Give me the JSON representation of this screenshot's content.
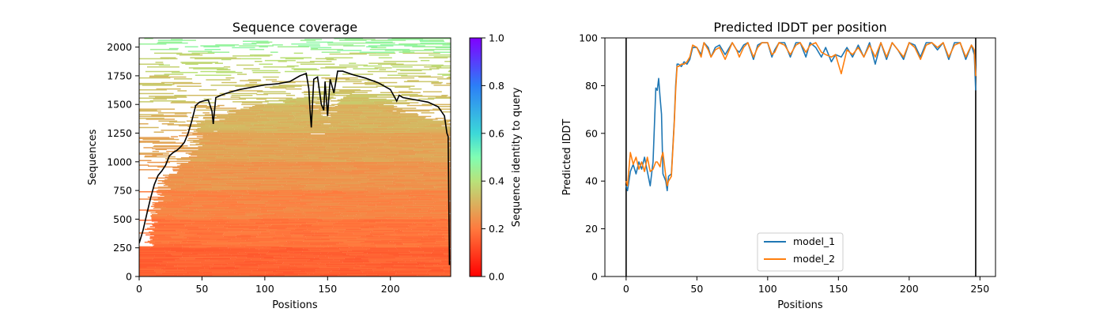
{
  "chart_data": [
    {
      "type": "heatmap",
      "title": "Sequence coverage",
      "xlabel": "Positions",
      "ylabel": "Sequences",
      "xlim": [
        0,
        248
      ],
      "ylim": [
        0,
        2080
      ],
      "xticks": [
        0,
        50,
        100,
        150,
        200
      ],
      "yticks": [
        0,
        250,
        500,
        750,
        1000,
        1250,
        1500,
        1750,
        2000
      ],
      "grid": false,
      "colorbar": {
        "label": "Sequence identity to query",
        "range": [
          0,
          1
        ],
        "ticks": [
          "0.0",
          "0.2",
          "0.4",
          "0.6",
          "0.8",
          "1.0"
        ],
        "colormap": "rainbow_r"
      },
      "identity_bands": [
        {
          "seq_start": 0,
          "seq_end": 250,
          "identity": 0.16
        },
        {
          "seq_start": 250,
          "seq_end": 500,
          "identity": 0.19
        },
        {
          "seq_start": 500,
          "seq_end": 750,
          "identity": 0.22
        },
        {
          "seq_start": 750,
          "seq_end": 1000,
          "identity": 0.25
        },
        {
          "seq_start": 1000,
          "seq_end": 1250,
          "identity": 0.28
        },
        {
          "seq_start": 1250,
          "seq_end": 1500,
          "identity": 0.31
        },
        {
          "seq_start": 1500,
          "seq_end": 1750,
          "identity": 0.34
        },
        {
          "seq_start": 1750,
          "seq_end": 1950,
          "identity": 0.38
        },
        {
          "seq_start": 1950,
          "seq_end": 2080,
          "identity": 0.46
        }
      ],
      "coverage_line": {
        "color": "#000000",
        "x": [
          0,
          3,
          6,
          9,
          12,
          15,
          18,
          21,
          24,
          27,
          30,
          33,
          36,
          39,
          42,
          45,
          48,
          51,
          55,
          58,
          59,
          61,
          65,
          70,
          80,
          90,
          100,
          110,
          120,
          128,
          133,
          135,
          136,
          137,
          139,
          142,
          145,
          147,
          148,
          150,
          152,
          155,
          158,
          162,
          170,
          180,
          190,
          200,
          205,
          207,
          210,
          220,
          230,
          238,
          243,
          245,
          246,
          247
        ],
        "y": [
          290,
          400,
          540,
          680,
          800,
          880,
          920,
          970,
          1050,
          1080,
          1100,
          1130,
          1170,
          1250,
          1360,
          1490,
          1520,
          1530,
          1540,
          1440,
          1330,
          1560,
          1580,
          1600,
          1630,
          1650,
          1670,
          1680,
          1700,
          1750,
          1770,
          1640,
          1450,
          1300,
          1720,
          1740,
          1500,
          1450,
          1700,
          1400,
          1720,
          1600,
          1790,
          1790,
          1760,
          1730,
          1690,
          1630,
          1530,
          1580,
          1560,
          1540,
          1520,
          1480,
          1400,
          1250,
          1220,
          100
        ]
      }
    },
    {
      "type": "line",
      "title": "Predicted lDDT per position",
      "xlabel": "Positions",
      "ylabel": "Predicted lDDT",
      "xlim": [
        -15,
        261
      ],
      "ylim": [
        0,
        100
      ],
      "xticks": [
        0,
        50,
        100,
        150,
        200,
        250
      ],
      "yticks": [
        0,
        20,
        40,
        60,
        80,
        100
      ],
      "grid": false,
      "legend": {
        "placement": "lower center"
      },
      "vlines": [
        0,
        247
      ],
      "series": [
        {
          "name": "model_1",
          "color": "#1f77b4",
          "x": [
            0,
            1,
            3,
            5,
            7,
            9,
            11,
            13,
            15,
            17,
            19,
            21,
            22,
            23,
            24,
            25,
            26,
            28,
            29,
            30,
            32,
            34,
            35,
            36,
            37,
            39,
            41,
            43,
            45,
            47,
            50,
            53,
            55,
            58,
            60,
            63,
            66,
            70,
            75,
            78,
            80,
            83,
            86,
            90,
            93,
            96,
            100,
            103,
            105,
            108,
            112,
            116,
            120,
            123,
            127,
            130,
            134,
            138,
            141,
            145,
            148,
            152,
            156,
            160,
            164,
            168,
            172,
            176,
            180,
            184,
            188,
            192,
            196,
            200,
            204,
            208,
            212,
            216,
            220,
            224,
            228,
            232,
            236,
            240,
            244,
            246,
            247
          ],
          "y": [
            38,
            36,
            44,
            47,
            43,
            48,
            45,
            50,
            44,
            38,
            48,
            79,
            78,
            83,
            75,
            68,
            43,
            40,
            36,
            42,
            43,
            65,
            80,
            89,
            89,
            88,
            90,
            89,
            91,
            96,
            96,
            93,
            98,
            96,
            92,
            96,
            97,
            93,
            98,
            95,
            94,
            97,
            98,
            91,
            97,
            98,
            98,
            92,
            95,
            98,
            98,
            92,
            98,
            98,
            92,
            98,
            96,
            92,
            96,
            90,
            93,
            92,
            96,
            92,
            97,
            92,
            98,
            89,
            98,
            91,
            98,
            95,
            91,
            98,
            97,
            92,
            98,
            98,
            95,
            98,
            91,
            98,
            98,
            91,
            97,
            93,
            78
          ]
        },
        {
          "name": "model_2",
          "color": "#ff7f0e",
          "x": [
            0,
            1,
            3,
            5,
            7,
            9,
            11,
            13,
            15,
            17,
            19,
            21,
            22,
            23,
            24,
            25,
            26,
            28,
            29,
            30,
            32,
            34,
            35,
            36,
            37,
            39,
            41,
            43,
            45,
            47,
            50,
            53,
            55,
            58,
            60,
            63,
            66,
            70,
            75,
            78,
            80,
            83,
            86,
            90,
            93,
            96,
            100,
            103,
            105,
            108,
            112,
            116,
            120,
            123,
            127,
            130,
            134,
            138,
            141,
            145,
            148,
            152,
            156,
            160,
            164,
            168,
            172,
            176,
            180,
            184,
            188,
            192,
            196,
            200,
            204,
            208,
            212,
            216,
            220,
            224,
            228,
            232,
            236,
            240,
            244,
            246,
            247
          ],
          "y": [
            40,
            38,
            52,
            47,
            50,
            45,
            48,
            44,
            50,
            44,
            45,
            48,
            48,
            47,
            46,
            50,
            52,
            42,
            38,
            40,
            42,
            64,
            78,
            88,
            88,
            89,
            89,
            90,
            92,
            97,
            96,
            92,
            98,
            95,
            92,
            95,
            96,
            91,
            98,
            95,
            92,
            96,
            98,
            92,
            96,
            98,
            98,
            93,
            94,
            98,
            97,
            93,
            97,
            98,
            94,
            97,
            98,
            94,
            93,
            92,
            93,
            85,
            95,
            93,
            96,
            92,
            97,
            92,
            98,
            92,
            98,
            95,
            92,
            98,
            96,
            91,
            97,
            98,
            96,
            98,
            92,
            97,
            98,
            92,
            97,
            95,
            84
          ]
        }
      ]
    }
  ]
}
